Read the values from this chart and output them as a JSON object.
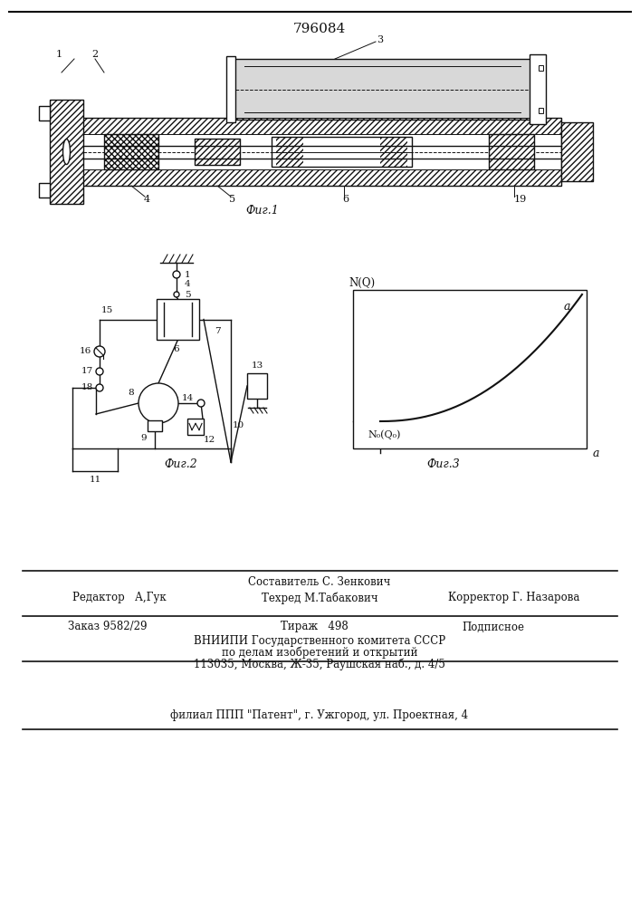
{
  "patent_number": "796084",
  "fig1_caption": "Фиг.1",
  "fig2_caption": "Фиг.2",
  "fig3_caption": "Фиг.3",
  "footer_line1": "Составитель С. Зенкович",
  "footer_line2_left": "Редактор   А,Гук",
  "footer_line2_mid": "Техред М.Табакович",
  "footer_line2_right": "Корректор Г. Назарова",
  "footer_line3_left": "Заказ 9582/29",
  "footer_line3_mid": "Тираж   498",
  "footer_line3_right": "Подписное",
  "footer_line4": "ВНИИПИ Государственного комитета СССР",
  "footer_line5": "по делам изобретений и открытий",
  "footer_line6": "113035, Москва, Ж-35, Раушская наб., д. 4/5",
  "footer_line7": "филиал ППП \"Патент\", г. Ужгород, ул. Проектная, 4"
}
